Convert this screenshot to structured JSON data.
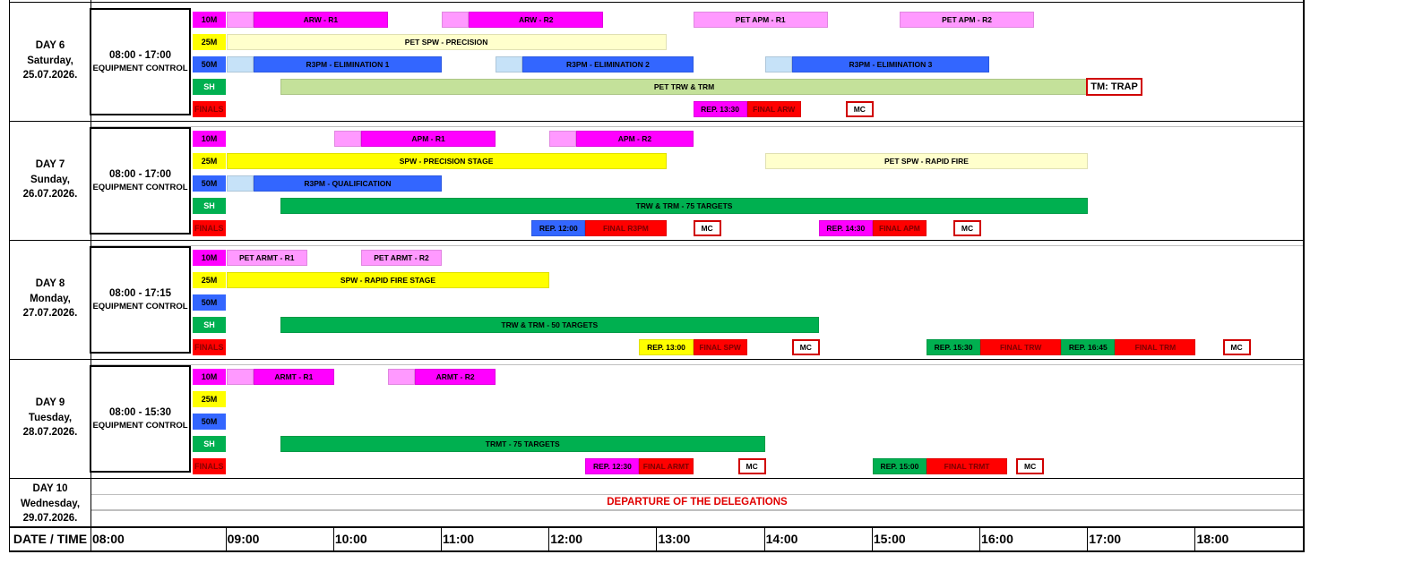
{
  "colors": {
    "magenta": "#ff00ff",
    "light_magenta": "#ff99ff",
    "yellow": "#ffff00",
    "light_yellow": "#ffffcc",
    "blue": "#3366ff",
    "light_blue": "#c6e2f8",
    "green": "#00b050",
    "light_green": "#c4e19a",
    "red": "#ff0000"
  },
  "lane_labels": [
    "10M",
    "25M",
    "50M",
    "SH",
    "FINALS"
  ],
  "days": [
    {
      "day": "DAY 6",
      "weekday": "Saturday,",
      "date": "25.07.2026.",
      "control_time": "08:00 - 17:00",
      "control_label": "EQUIPMENT CONTROL",
      "events": [
        {
          "lane": 0,
          "start": "09:00",
          "end": "09:15",
          "color": "light_magenta",
          "label": ""
        },
        {
          "lane": 0,
          "start": "09:15",
          "end": "10:30",
          "color": "magenta",
          "label": "ARW - R1"
        },
        {
          "lane": 0,
          "start": "11:00",
          "end": "11:15",
          "color": "light_magenta",
          "label": ""
        },
        {
          "lane": 0,
          "start": "11:15",
          "end": "12:30",
          "color": "magenta",
          "label": "ARW - R2"
        },
        {
          "lane": 0,
          "start": "13:20",
          "end": "14:35",
          "color": "light_magenta",
          "label": "PET APM - R1"
        },
        {
          "lane": 0,
          "start": "15:15",
          "end": "16:30",
          "color": "light_magenta",
          "label": "PET APM - R2"
        },
        {
          "lane": 1,
          "start": "09:00",
          "end": "13:05",
          "color": "light_yellow",
          "label": "PET SPW - PRECISION"
        },
        {
          "lane": 2,
          "start": "09:00",
          "end": "09:15",
          "color": "light_blue",
          "label": ""
        },
        {
          "lane": 2,
          "start": "09:15",
          "end": "11:00",
          "color": "blue",
          "label": "R3PM - ELIMINATION 1"
        },
        {
          "lane": 2,
          "start": "11:30",
          "end": "11:45",
          "color": "light_blue",
          "label": ""
        },
        {
          "lane": 2,
          "start": "11:45",
          "end": "13:20",
          "color": "blue",
          "label": "R3PM - ELIMINATION 2"
        },
        {
          "lane": 2,
          "start": "14:00",
          "end": "14:15",
          "color": "light_blue",
          "label": ""
        },
        {
          "lane": 2,
          "start": "14:15",
          "end": "16:05",
          "color": "blue",
          "label": "R3PM - ELIMINATION 3"
        },
        {
          "lane": 3,
          "start": "09:30",
          "end": "17:00",
          "color": "light_green",
          "label": "PET TRW & TRM"
        },
        {
          "lane": 4,
          "start": "13:20",
          "end": "13:50",
          "color": "magenta",
          "label": "REP. 13:30"
        },
        {
          "lane": 4,
          "start": "13:50",
          "end": "14:20",
          "color": "red",
          "label": "FINAL ARW"
        }
      ],
      "mc": [
        {
          "lane": 4,
          "start": "14:45",
          "label": "MC"
        }
      ],
      "extra": {
        "label": "TM: TRAP",
        "start": "17:00"
      }
    },
    {
      "day": "DAY 7",
      "weekday": "Sunday,",
      "date": "26.07.2026.",
      "control_time": "08:00 - 17:00",
      "control_label": "EQUIPMENT CONTROL",
      "events": [
        {
          "lane": 0,
          "start": "10:00",
          "end": "10:15",
          "color": "light_magenta",
          "label": ""
        },
        {
          "lane": 0,
          "start": "10:15",
          "end": "11:30",
          "color": "magenta",
          "label": "APM - R1"
        },
        {
          "lane": 0,
          "start": "12:00",
          "end": "12:15",
          "color": "light_magenta",
          "label": ""
        },
        {
          "lane": 0,
          "start": "12:15",
          "end": "13:20",
          "color": "magenta",
          "label": "APM - R2"
        },
        {
          "lane": 1,
          "start": "09:00",
          "end": "13:05",
          "color": "yellow",
          "label": "SPW - PRECISION STAGE"
        },
        {
          "lane": 1,
          "start": "14:00",
          "end": "17:00",
          "color": "light_yellow",
          "label": "PET SPW - RAPID FIRE"
        },
        {
          "lane": 2,
          "start": "09:00",
          "end": "09:15",
          "color": "light_blue",
          "label": ""
        },
        {
          "lane": 2,
          "start": "09:15",
          "end": "11:00",
          "color": "blue",
          "label": "R3PM - QUALIFICATION"
        },
        {
          "lane": 3,
          "start": "09:30",
          "end": "17:00",
          "color": "green",
          "label": "TRW & TRM - 75 TARGETS"
        },
        {
          "lane": 4,
          "start": "11:50",
          "end": "12:20",
          "color": "blue",
          "label": "REP. 12:00"
        },
        {
          "lane": 4,
          "start": "12:20",
          "end": "13:05",
          "color": "red",
          "label": "FINAL R3PM"
        },
        {
          "lane": 4,
          "start": "14:30",
          "end": "15:00",
          "color": "magenta",
          "label": "REP. 14:30"
        },
        {
          "lane": 4,
          "start": "15:00",
          "end": "15:30",
          "color": "red",
          "label": "FINAL APM"
        }
      ],
      "mc": [
        {
          "lane": 4,
          "start": "13:20",
          "label": "MC"
        },
        {
          "lane": 4,
          "start": "15:45",
          "label": "MC"
        }
      ]
    },
    {
      "day": "DAY 8",
      "weekday": "Monday,",
      "date": "27.07.2026.",
      "control_time": "08:00 - 17:15",
      "control_label": "EQUIPMENT CONTROL",
      "events": [
        {
          "lane": 0,
          "start": "09:00",
          "end": "09:45",
          "color": "light_magenta",
          "label": "PET ARMT - R1"
        },
        {
          "lane": 0,
          "start": "10:15",
          "end": "11:00",
          "color": "light_magenta",
          "label": "PET ARMT - R2"
        },
        {
          "lane": 1,
          "start": "09:00",
          "end": "12:00",
          "color": "yellow",
          "label": "SPW - RAPID FIRE STAGE"
        },
        {
          "lane": 3,
          "start": "09:30",
          "end": "14:30",
          "color": "green",
          "label": "TRW & TRM - 50 TARGETS"
        },
        {
          "lane": 4,
          "start": "12:50",
          "end": "13:20",
          "color": "yellow",
          "label": "REP. 13:00"
        },
        {
          "lane": 4,
          "start": "13:20",
          "end": "13:50",
          "color": "red",
          "label": "FINAL SPW"
        },
        {
          "lane": 4,
          "start": "15:30",
          "end": "16:00",
          "color": "green",
          "label": "REP. 15:30"
        },
        {
          "lane": 4,
          "start": "16:00",
          "end": "16:45",
          "color": "red",
          "label": "FINAL TRW"
        },
        {
          "lane": 4,
          "start": "16:45",
          "end": "17:15",
          "color": "green",
          "label": "REP. 16:45"
        },
        {
          "lane": 4,
          "start": "17:15",
          "end": "18:00",
          "color": "red",
          "label": "FINAL TRM"
        }
      ],
      "mc": [
        {
          "lane": 4,
          "start": "14:15",
          "label": "MC"
        },
        {
          "lane": 4,
          "start": "18:15",
          "label": "MC"
        }
      ]
    },
    {
      "day": "DAY 9",
      "weekday": "Tuesday,",
      "date": "28.07.2026.",
      "control_time": "08:00 - 15:30",
      "control_label": "EQUIPMENT CONTROL",
      "events": [
        {
          "lane": 0,
          "start": "09:00",
          "end": "09:15",
          "color": "light_magenta",
          "label": ""
        },
        {
          "lane": 0,
          "start": "09:15",
          "end": "10:00",
          "color": "magenta",
          "label": "ARMT - R1"
        },
        {
          "lane": 0,
          "start": "10:30",
          "end": "10:45",
          "color": "light_magenta",
          "label": ""
        },
        {
          "lane": 0,
          "start": "10:45",
          "end": "11:30",
          "color": "magenta",
          "label": "ARMT - R2"
        },
        {
          "lane": 3,
          "start": "09:30",
          "end": "14:00",
          "color": "green",
          "label": "TRMT - 75 TARGETS"
        },
        {
          "lane": 4,
          "start": "12:20",
          "end": "12:50",
          "color": "magenta",
          "label": "REP. 12:30"
        },
        {
          "lane": 4,
          "start": "12:50",
          "end": "13:20",
          "color": "red",
          "label": "FINAL ARMT"
        }
      ],
      "mc": [
        {
          "lane": 4,
          "start": "13:45",
          "label": "MC"
        },
        {
          "lane": 4,
          "start": "16:20",
          "label": "MC"
        }
      ],
      "extra_events": [
        {
          "lane": 4,
          "start": "15:00",
          "end": "15:30",
          "color": "green",
          "label": "REP. 15:00"
        },
        {
          "lane": 4,
          "start": "15:30",
          "end": "16:15",
          "color": "red",
          "label": "FINAL TRMT"
        }
      ]
    }
  ],
  "day10": {
    "day": "DAY 10",
    "weekday": "Wednesday,",
    "date": "29.07.2026.",
    "note": "DEPARTURE OF THE DELEGATIONS"
  },
  "axis": {
    "header": "DATE / TIME",
    "ticks": [
      "08:00",
      "09:00",
      "10:00",
      "11:00",
      "12:00",
      "13:00",
      "14:00",
      "15:00",
      "16:00",
      "17:00",
      "18:00"
    ]
  }
}
